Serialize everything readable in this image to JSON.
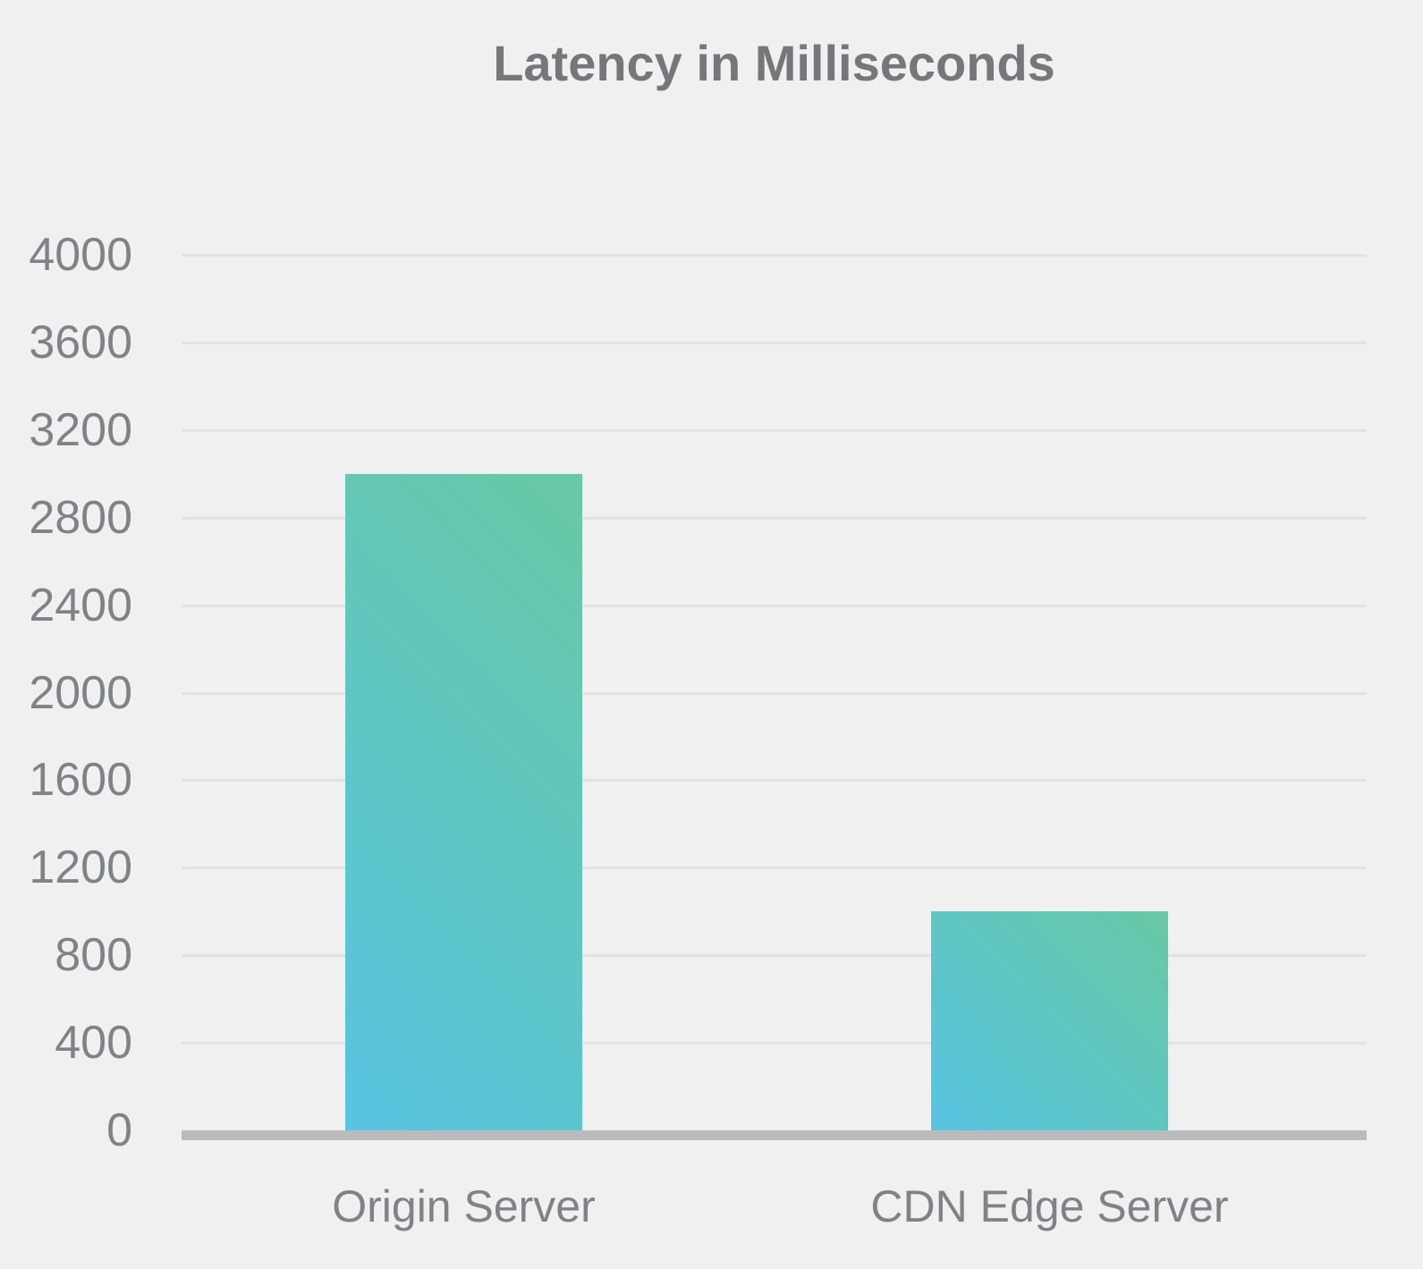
{
  "chart_data": {
    "type": "bar",
    "title": "Latency in Milliseconds",
    "categories": [
      "Origin Server",
      "CDN Edge Server"
    ],
    "values": [
      3000,
      1000
    ],
    "xlabel": "",
    "ylabel": "",
    "ylim": [
      0,
      4000
    ],
    "ytick_step": 400,
    "yticks": [
      0,
      400,
      800,
      1200,
      1600,
      2000,
      2400,
      2800,
      3200,
      3600,
      4000
    ],
    "grid": true,
    "legend": false,
    "bar_gradient_start": "#57c4e1",
    "bar_gradient_end": "#68c9a4"
  },
  "colors": {
    "background": "#f0f0f1",
    "title_text": "#76777b",
    "tick_text": "#7f8286",
    "gridline": "#e1e2e4",
    "axis_line": "#b9bbbe",
    "bar_gradient_start": "#57c4e1",
    "bar_gradient_end": "#68c9a4"
  }
}
